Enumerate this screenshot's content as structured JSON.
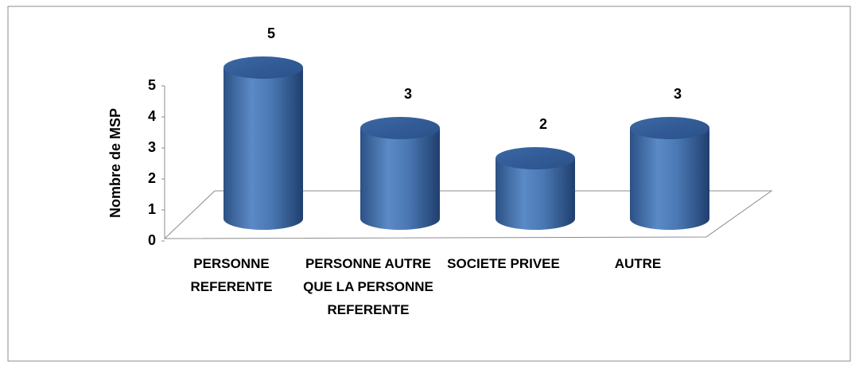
{
  "chart_data": {
    "type": "bar",
    "y_label": "Nombre de MSP",
    "categories": [
      "PERSONNE REFERENTE",
      "PERSONNE AUTRE QUE LA PERSONNE REFERENTE",
      "SOCIETE PRIVEE",
      "AUTRE"
    ],
    "values": [
      5,
      3,
      2,
      3
    ],
    "color": "#4f81bd",
    "ylim": [
      0,
      5
    ],
    "yticks": [
      0,
      1,
      2,
      3,
      4,
      5
    ],
    "grid": false
  }
}
